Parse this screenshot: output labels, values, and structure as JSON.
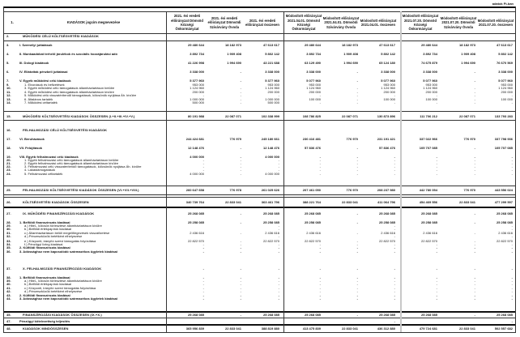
{
  "unit_note": "adatok Ft-ban",
  "header": {
    "num": "1.",
    "label": "KIADÁSOK jogcím megnevezése",
    "columns": [
      "2021. évi eredeti előirányzat Dömsöd Községi Önkormányzat",
      "2021. évi eredeti előirányzat Dömsödi Szivárvány Óvoda",
      "2021. évi eredeti előirányzat összesen",
      "Módosított előirányzat 2021.04.01. Dömsöd Községi Önkormányzat",
      "Módosított előirányzat 2021.04.01. Dömsödi Szivárvány Óvoda",
      "Módosított előirányzat 2021.04.01. összesen",
      "Módosított előirányzat 2021.07.20. Dömsöd Községi Önkormányzat",
      "Módosított előirányzat 2021.07.20. Dömsödi Szivárvány Óvoda",
      "Módosított előirányzat 2021.07.20. összesen"
    ]
  },
  "rows": [
    {
      "num": "2.",
      "label": "MŰKÖDÉSI CÉLÚ KÖLTSÉGVETÉSI KIADÁSOK",
      "type": "section",
      "values": [
        "",
        "",
        "",
        "",
        "",
        "",
        "",
        "",
        ""
      ]
    },
    {
      "num": "3.",
      "label": "I. Személyi juttatások",
      "type": "item",
      "values": [
        "29 480 644",
        "18 182 973",
        "47 613 617",
        "29 480 644",
        "18 182 973",
        "47 613 617",
        "29 480 644",
        "18 182 973",
        "47 613 617"
      ]
    },
    {
      "num": "4.",
      "label": "II. Munkaadókat terhelő járulékok és szociális hozzájárulási adó",
      "type": "item",
      "values": [
        "3 892 734",
        "1 909 408",
        "5 802 142",
        "3 892 734",
        "1 909 408",
        "5 802 142",
        "3 892 734",
        "1 909 408",
        "5 802 142"
      ]
    },
    {
      "num": "5.",
      "label": "III. Dologi kiadások",
      "type": "item",
      "values": [
        "41 226 998",
        "1 994 690",
        "43 221 688",
        "63 129 490",
        "1 994 690",
        "65 124 180",
        "74 675 879",
        "1 994 690",
        "76 670 569"
      ]
    },
    {
      "num": "6.",
      "label": "IV. Ellátottak pénzbeli juttatásai",
      "type": "item",
      "values": [
        "3 338 000",
        "-",
        "3 338 000",
        "3 338 000",
        "-",
        "3 338 000",
        "3 338 000",
        "-",
        "3 338 000"
      ]
    },
    {
      "num": "7.",
      "label": "V. Egyéb működési célú kiadások",
      "type": "item",
      "values": [
        "5 377 960",
        "-",
        "5 377 960",
        "5 077 960",
        "-",
        "5 077 960",
        "5 077 960",
        "-",
        "5 077 960"
      ]
    },
    {
      "num": "9.",
      "label": "1. Elvonások és befizetések",
      "type": "sub",
      "values": [
        "953 000",
        "",
        "953 000",
        "953 000",
        "",
        "953 000",
        "953 000",
        "",
        "953 000"
      ]
    },
    {
      "num": "10.",
      "label": "3. Egyéb működési célú támogatások államháztartáson belülre",
      "type": "sub",
      "values": [
        "1 124 960",
        "-",
        "1 124 960",
        "1 124 960",
        "-",
        "1 124 960",
        "1 124 960",
        "-",
        "1 124 960"
      ]
    },
    {
      "num": "11.",
      "label": "4. Egyéb működési célú támogatások államháztartáson kívülre",
      "type": "sub",
      "values": [
        "200 000",
        "-",
        "200 000",
        "200 000",
        "-",
        "200 000",
        "200 000",
        "-",
        "200 000"
      ]
    },
    {
      "num": "12.",
      "label": "5. Működési célú visszatérítendő támogatások, kölcsönök nyújtása Áh. kívülre",
      "type": "sub",
      "values": [
        "-",
        "-",
        "-",
        "-",
        "-",
        "-",
        "-",
        "-",
        "-"
      ]
    },
    {
      "num": "13.",
      "label": "6. Általános tartalék",
      "type": "sub",
      "values": [
        "1 000 000",
        "-",
        "1 000 000",
        "100 000",
        "-",
        "100 000",
        "100 000",
        "-",
        "100 000"
      ]
    },
    {
      "num": "14.",
      "label": "7. Működési céltartalék",
      "type": "sub",
      "values": [
        "500 000",
        "-",
        "500 000",
        "-",
        "-",
        "-",
        "-",
        "-",
        "-"
      ]
    },
    {
      "num": "15.",
      "label": "MŰKÖDÉSI KÖLTSÉGVETÉSI KIADÁSOK ÖSSZESEN (I.+II.+III.+IV.+V.)",
      "type": "total",
      "values": [
        "80 191 988",
        "22 087 071",
        "102 338 999",
        "108 786 825",
        "22 087 071",
        "130 873 896",
        "111 706 212",
        "22 087 071",
        "133 793 283"
      ]
    },
    {
      "num": "16.",
      "label": "FELHALMOZÁSI CÉLÚ KÖLTSÉGVETÉSI KIADÁSOK",
      "type": "section",
      "values": [
        "",
        "",
        "",
        "",
        "",
        "",
        "",
        "",
        ""
      ]
    },
    {
      "num": "17.",
      "label": "VI. Beruházások",
      "type": "item",
      "values": [
        "244 424 681",
        "776 979",
        "245 180 661",
        "230 416 481",
        "776 970",
        "231 191 421",
        "337 022 966",
        "776 970",
        "337 798 936"
      ]
    },
    {
      "num": "18.",
      "label": "VII. Felújítások",
      "type": "item",
      "values": [
        "12 148 476",
        "-",
        "12 148 476",
        "57 836 476",
        "-",
        "57 836 476",
        "105 707 085",
        "-",
        "105 707 085"
      ]
    },
    {
      "num": "19.",
      "label": "VIII. Egyéb felhalmozási célú kiadások",
      "type": "item",
      "values": [
        "4 000 000",
        "-",
        "4 000 000",
        "-",
        "-",
        "-",
        "-",
        "-",
        "-"
      ]
    },
    {
      "num": "20.",
      "label": "1. Egyéb felhalmozási célú támogatások államháztartáson belülre",
      "type": "sub",
      "values": [
        "-",
        "-",
        "-",
        "-",
        "-",
        "-",
        "-",
        "-",
        "-"
      ]
    },
    {
      "num": "21.",
      "label": "2. Egyéb felhalmozási célú támogatások államháztartáson kívülre",
      "type": "sub",
      "values": [
        "-",
        "-",
        "-",
        "-",
        "-",
        "-",
        "-",
        "-",
        "-"
      ]
    },
    {
      "num": "22.",
      "label": "3. Felhalmozási célú visszatérítendő támogatások, kölcsönök nyújtása Áh. kívülre",
      "type": "sub",
      "values": [
        "-",
        "-",
        "-",
        "-",
        "-",
        "-",
        "-",
        "-",
        "-"
      ]
    },
    {
      "num": "23.",
      "label": "4. Lakástámogatások",
      "type": "sub",
      "values": [
        "-",
        "-",
        "-",
        "-",
        "-",
        "-",
        "-",
        "-",
        "-"
      ]
    },
    {
      "num": "24.",
      "label": "5. Felhalmozási céltartalék",
      "type": "sub",
      "values": [
        "4 000 000",
        "-",
        "4 000 000",
        "-",
        "-",
        "-",
        "-",
        "-",
        "-"
      ]
    },
    {
      "num": "25.",
      "label": "FELHALMOZÁSI KÖLTSÉGVETÉSI KIADÁSOK ÖSSZESEN (VI.+VII.+VIII.)",
      "type": "total",
      "values": [
        "260 647 658",
        "776 978",
        "261 025 626",
        "207 461 050",
        "776 970",
        "208 237 980",
        "442 780 054",
        "776 970",
        "443 556 024"
      ]
    },
    {
      "num": "26.",
      "label": "KÖLTSÉGVETÉSI KIADÁSOK ÖSSZESEN",
      "type": "total",
      "values": [
        "340 739 764",
        "22 833 041",
        "363 461 796",
        "388 221 764",
        "22 833 041",
        "411 064 796",
        "454 469 556",
        "22 833 041",
        "477 299 597"
      ]
    },
    {
      "num": "27.",
      "label": "IX. MŰKÖDÉSI FINANSZÍROZÁSI KIADÁSOK",
      "type": "total",
      "values": [
        "25 268 085",
        "-",
        "25 268 085",
        "25 268 085",
        "-",
        "25 268 085",
        "25 268 085",
        "-",
        "25 268 085"
      ]
    },
    {
      "num": "28.",
      "label": "1. Belföldi finanszírozás kiadásai",
      "type": "item",
      "values": [
        "25 258 085",
        "-",
        "25 258 085",
        "25 258 085",
        "-",
        "25 258 085",
        "25 258 085",
        "-",
        "25 258 085"
      ]
    },
    {
      "num": "29.",
      "label": "a.) Hitel-, kölcsön törlesztése államháztartáson kívülre",
      "type": "sub",
      "values": [
        "",
        "",
        "-",
        "",
        "",
        "-",
        "",
        "",
        "-"
      ]
    },
    {
      "num": "30.",
      "label": "b.) Belföldi értékpapírok kiadásai",
      "type": "sub",
      "values": [
        "",
        "",
        "-",
        "",
        "",
        "-",
        "",
        "",
        "-"
      ]
    },
    {
      "num": "31.",
      "label": "c.) Államháztartáson belüli megelőlegezések visszafizetése",
      "type": "sub",
      "values": [
        "2 436 616",
        "-",
        "2 436 616",
        "2 436 616",
        "-",
        "2 436 616",
        "2 436 616",
        "-",
        "2 436 616"
      ]
    },
    {
      "num": "32.",
      "label": "d.) Pénzeszközök betétként elhelyezése",
      "type": "sub",
      "values": [
        "",
        "",
        "-",
        "",
        "",
        "-",
        "",
        "",
        "-"
      ]
    },
    {
      "num": "33.",
      "label": "e.) Központi, irányító szervi támogatás folyósítása",
      "type": "sub",
      "values": [
        "22 822 570",
        "-",
        "22 822 570",
        "22 822 570",
        "-",
        "22 822 570",
        "22 822 570",
        "-",
        "22 822 570"
      ]
    },
    {
      "num": "34.",
      "label": "f.) Pénzügyi lízing kiadásai",
      "type": "sub",
      "values": [
        "-",
        "-",
        "-",
        "-",
        "-",
        "-",
        "-",
        "-",
        "-"
      ]
    },
    {
      "num": "35.",
      "label": "2. Külföldi finanszírozás kiadásai",
      "type": "item",
      "values": [
        "-",
        "-",
        "-",
        "-",
        "-",
        "-",
        "-",
        "-",
        "-"
      ]
    },
    {
      "num": "36.",
      "label": "3. Adóssághoz nem kapcsolódó származékos ügyletek kiadásai",
      "type": "item",
      "values": [
        "-",
        "-",
        "-",
        "-",
        "-",
        "-",
        "-",
        "-",
        "-"
      ]
    },
    {
      "num": "37.",
      "label": "X. FELHALMOZÁSI FINANSZÍROZÁSI KIADÁSOK",
      "type": "total",
      "values": [
        "-",
        "-",
        "-",
        "-",
        "-",
        "-",
        "-",
        "-",
        "-"
      ]
    },
    {
      "num": "38.",
      "label": "1. Belföldi finanszírozás kiadásai",
      "type": "item",
      "values": [
        "-",
        "-",
        "-",
        "-",
        "-",
        "-",
        "-",
        "-",
        "-"
      ]
    },
    {
      "num": "39.",
      "label": "a.) Hitel-, kölcsön törlesztése államháztartáson kívülre",
      "type": "sub",
      "values": [
        "-",
        "-",
        "-",
        "-",
        "-",
        "-",
        "-",
        "-",
        "-"
      ]
    },
    {
      "num": "40.",
      "label": "b.) Belföldi értékpapírok kiadásai",
      "type": "sub",
      "values": [
        "-",
        "-",
        "-",
        "-",
        "-",
        "-",
        "-",
        "-",
        "-"
      ]
    },
    {
      "num": "41.",
      "label": "c.) Központi, irányító szervi támogatás folyósítása",
      "type": "sub",
      "values": [
        "-",
        "-",
        "-",
        "-",
        "-",
        "-",
        "-",
        "-",
        "-"
      ]
    },
    {
      "num": "42.",
      "label": "d.) Pénzeszközök betétként elhelyezése",
      "type": "sub",
      "values": [
        "-",
        "-",
        "-",
        "-",
        "-",
        "-",
        "-",
        "-",
        "-"
      ]
    },
    {
      "num": "43.",
      "label": "2. Külföldi finanszírozás kiadásai",
      "type": "item",
      "values": [
        "-",
        "-",
        "-",
        "-",
        "-",
        "-",
        "-",
        "-",
        "-"
      ]
    },
    {
      "num": "44.",
      "label": "3. Adóssághoz nem kapcsolódó származékos ügyletek kiadásai",
      "type": "item",
      "values": [
        "-",
        "-",
        "-",
        "-",
        "-",
        "-",
        "-",
        "-",
        "-"
      ]
    },
    {
      "num": "45.",
      "label": "FINANSZÍROZÁSI KIADÁSOK ÖSSZESEN (IX.+X.)",
      "type": "total",
      "values": [
        "25 268 085",
        "-",
        "25 268 085",
        "25 268 085",
        "-",
        "25 268 085",
        "25 268 085",
        "-",
        "25 268 085"
      ]
    },
    {
      "num": "47.",
      "label": "Pénzügyi kötelezettség teljesítés",
      "type": "item",
      "values": [
        "",
        "",
        "",
        "",
        "",
        "-",
        "",
        "",
        "-"
      ]
    },
    {
      "num": "48.",
      "label": "KIADÁSOK MINDÖSSZESEN",
      "type": "total",
      "values": [
        "365 956 839",
        "22 833 041",
        "388 819 880",
        "413 475 839",
        "22 833 041",
        "436 312 880",
        "479 724 681",
        "22 833 041",
        "502 557 682"
      ]
    }
  ]
}
